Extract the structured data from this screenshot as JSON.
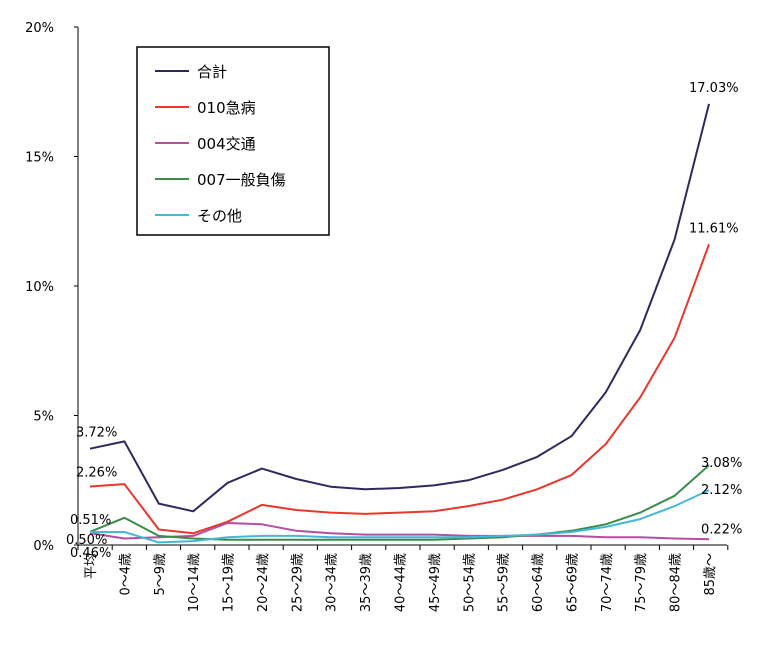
{
  "chart_data": {
    "type": "line",
    "categories": [
      "平均",
      "0～4歳",
      "5～9歳",
      "10～14歳",
      "15～19歳",
      "20～24歳",
      "25～29歳",
      "30～34歳",
      "35～39歳",
      "40～44歳",
      "45～49歳",
      "50～54歳",
      "55～59歳",
      "60～64歳",
      "65～69歳",
      "70～74歳",
      "75～79歳",
      "80～84歳",
      "85歳～"
    ],
    "ylim": [
      0,
      20
    ],
    "yticks": [
      0,
      5,
      10,
      15,
      20
    ],
    "ytick_labels": [
      "0%",
      "5%",
      "10%",
      "15%",
      "20%"
    ],
    "legend": {
      "position": "top-left"
    },
    "series": [
      {
        "name": "合計",
        "color": "#2e2b5c",
        "values": [
          3.72,
          4.0,
          1.6,
          1.3,
          2.4,
          2.95,
          2.55,
          2.25,
          2.15,
          2.2,
          2.3,
          2.5,
          2.9,
          3.4,
          4.2,
          5.9,
          8.3,
          11.8,
          17.03
        ]
      },
      {
        "name": "010急病",
        "color": "#e8372b",
        "values": [
          2.26,
          2.35,
          0.6,
          0.45,
          0.9,
          1.55,
          1.35,
          1.25,
          1.2,
          1.25,
          1.3,
          1.5,
          1.75,
          2.15,
          2.7,
          3.9,
          5.7,
          8.0,
          11.61
        ]
      },
      {
        "name": "004交通",
        "color": "#b64da0",
        "values": [
          0.46,
          0.25,
          0.3,
          0.35,
          0.85,
          0.8,
          0.55,
          0.45,
          0.4,
          0.4,
          0.4,
          0.35,
          0.35,
          0.35,
          0.35,
          0.3,
          0.3,
          0.25,
          0.22
        ]
      },
      {
        "name": "007一般負傷",
        "color": "#3b8c4a",
        "values": [
          0.51,
          1.05,
          0.35,
          0.25,
          0.2,
          0.2,
          0.2,
          0.2,
          0.2,
          0.2,
          0.2,
          0.25,
          0.3,
          0.4,
          0.55,
          0.8,
          1.25,
          1.9,
          3.08
        ]
      },
      {
        "name": "その他",
        "color": "#45b8d6",
        "values": [
          0.5,
          0.5,
          0.1,
          0.15,
          0.3,
          0.35,
          0.35,
          0.3,
          0.3,
          0.3,
          0.3,
          0.3,
          0.35,
          0.4,
          0.5,
          0.7,
          1.0,
          1.5,
          2.12
        ]
      }
    ],
    "data_labels": [
      {
        "series": 0,
        "index": 0,
        "text": "3.72%"
      },
      {
        "series": 1,
        "index": 0,
        "text": "2.26%"
      },
      {
        "series": 3,
        "index": 0,
        "text": "0.51%"
      },
      {
        "series": 4,
        "index": 0,
        "text": "0.50%"
      },
      {
        "series": 2,
        "index": 0,
        "text": "0.46%"
      },
      {
        "series": 0,
        "index": 18,
        "text": "17.03%"
      },
      {
        "series": 1,
        "index": 18,
        "text": "11.61%"
      },
      {
        "series": 3,
        "index": 18,
        "text": "3.08%"
      },
      {
        "series": 4,
        "index": 18,
        "text": "2.12%"
      },
      {
        "series": 2,
        "index": 18,
        "text": "0.22%"
      }
    ]
  }
}
